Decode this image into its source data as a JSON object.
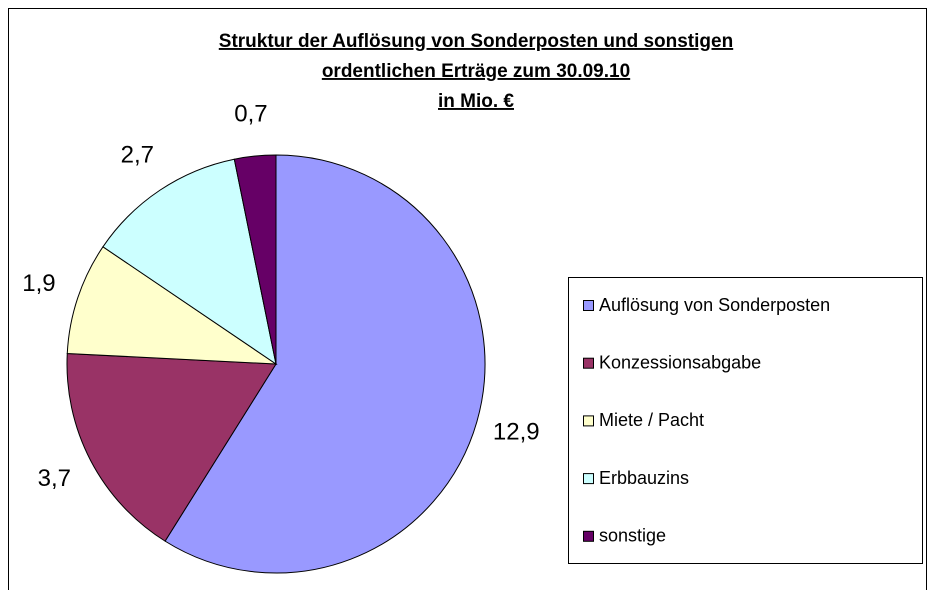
{
  "chart_data": {
    "type": "pie",
    "title": [
      "Struktur der Auflösung von Sonderposten und sonstigen",
      "ordentlichen Erträge zum 30.09.10",
      "in Mio. €"
    ],
    "categories": [
      "Auflösung von Sonderposten",
      "Konzessionsabgabe",
      "Miete / Pacht",
      "Erbbauzins",
      "sonstige"
    ],
    "values": [
      12.9,
      3.7,
      1.9,
      2.7,
      0.7
    ],
    "value_labels": [
      "12,9",
      "3,7",
      "1,9",
      "2,7",
      "0,7"
    ],
    "colors": [
      "#9999ff",
      "#993366",
      "#ffffcc",
      "#ccffff",
      "#660066"
    ],
    "legend": "right"
  }
}
